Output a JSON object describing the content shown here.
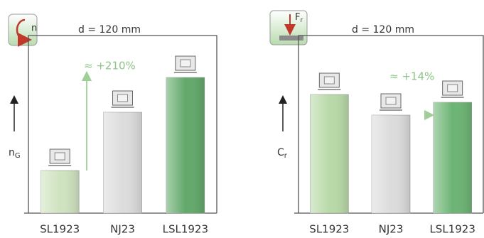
{
  "chart_data": [
    {
      "type": "bar",
      "title": "d = 120 mm",
      "icon_label": "n",
      "y_label": "n",
      "y_label_sub": "G",
      "categories": [
        "SL1923",
        "NJ23",
        "LSL1923"
      ],
      "values": [
        60,
        142,
        191
      ],
      "colors": [
        "#cfe3bf",
        "#dcdcdc",
        "#62a96a"
      ],
      "ylim": [
        0,
        260
      ],
      "annotation": "≈ +210%"
    },
    {
      "type": "bar",
      "title": "d = 120 mm",
      "icon_label": "F",
      "icon_label_sub": "r",
      "y_label": "C",
      "y_label_sub": "r",
      "categories": [
        "SL1923",
        "NJ23",
        "LSL1923"
      ],
      "values": [
        167,
        138,
        156
      ],
      "colors": [
        "#b9d9a8",
        "#dcdcdc",
        "#6cb474"
      ],
      "ylim": [
        0,
        260
      ],
      "annotation": "≈ +14%"
    }
  ]
}
